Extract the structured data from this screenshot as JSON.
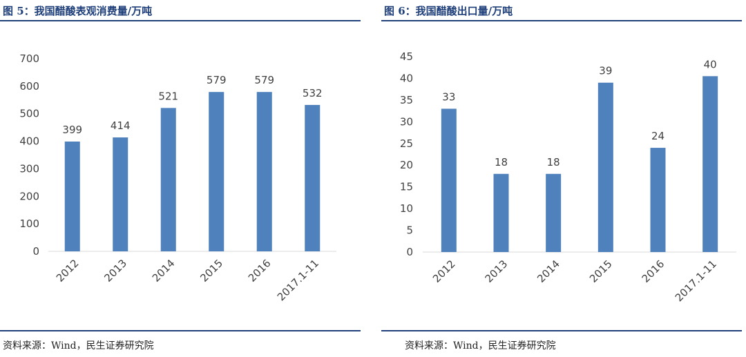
{
  "panels": [
    {
      "title": "图 5：我国醋酸表观消费量/万吨",
      "source": "资料来源：Wind，民生证券研究院",
      "chart_data": {
        "type": "bar",
        "categories": [
          "2012",
          "2013",
          "2014",
          "2015",
          "2016",
          "2017.1-11"
        ],
        "values": [
          399,
          414,
          521,
          579,
          579,
          532
        ],
        "data_labels": [
          "399",
          "414",
          "521",
          "579",
          "579",
          "532"
        ],
        "ylim": [
          0,
          700
        ],
        "yticks": [
          0,
          100,
          200,
          300,
          400,
          500,
          600,
          700
        ],
        "color": "#4f81bd",
        "grid": false
      }
    },
    {
      "title": "图 6：我国醋酸出口量/万吨",
      "source": "资料来源：Wind，民生证券研究院",
      "chart_data": {
        "type": "bar",
        "categories": [
          "2012",
          "2013",
          "2014",
          "2015",
          "2016",
          "2017.1-11"
        ],
        "values": [
          33,
          18,
          18,
          39,
          24,
          40.5
        ],
        "data_labels": [
          "33",
          "18",
          "18",
          "39",
          "24",
          "40"
        ],
        "ylim": [
          0,
          45
        ],
        "yticks": [
          0,
          5,
          10,
          15,
          20,
          25,
          30,
          35,
          40,
          45
        ],
        "color": "#4f81bd",
        "grid": false
      }
    }
  ]
}
